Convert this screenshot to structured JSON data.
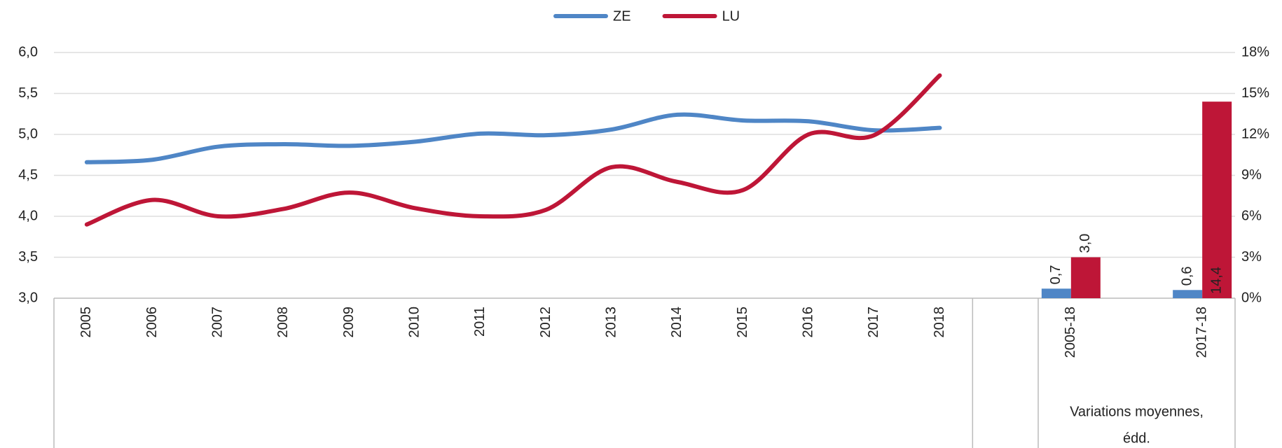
{
  "chart_data": {
    "type": "line-bar",
    "categories": [
      "2005",
      "2006",
      "2007",
      "2008",
      "2009",
      "2010",
      "2011",
      "2012",
      "2013",
      "2014",
      "2015",
      "2016",
      "2017",
      "2018",
      null,
      "2005-18",
      null,
      "2017-18"
    ],
    "series": [
      {
        "name": "ZE",
        "color": "#4f86c6",
        "values": [
          4.66,
          4.69,
          4.85,
          4.88,
          4.86,
          4.91,
          5.01,
          4.99,
          5.06,
          5.24,
          5.17,
          5.16,
          5.05,
          5.08,
          null,
          null,
          null,
          null
        ],
        "bar_values": [
          null,
          null,
          null,
          null,
          null,
          null,
          null,
          null,
          null,
          null,
          null,
          null,
          null,
          null,
          null,
          0.7,
          null,
          0.6
        ],
        "bar_value_labels": [
          null,
          null,
          null,
          null,
          null,
          null,
          null,
          null,
          null,
          null,
          null,
          null,
          null,
          null,
          null,
          "0,7",
          null,
          "0,6"
        ]
      },
      {
        "name": "LU",
        "color": "#be1637",
        "values": [
          3.9,
          4.2,
          4.0,
          4.09,
          4.29,
          4.1,
          4.0,
          4.08,
          4.6,
          4.42,
          4.32,
          5.0,
          4.99,
          5.72,
          null,
          null,
          null,
          null
        ],
        "bar_values": [
          null,
          null,
          null,
          null,
          null,
          null,
          null,
          null,
          null,
          null,
          null,
          null,
          null,
          null,
          null,
          3.0,
          null,
          14.4
        ],
        "bar_value_labels": [
          null,
          null,
          null,
          null,
          null,
          null,
          null,
          null,
          null,
          null,
          null,
          null,
          null,
          null,
          null,
          "3,0",
          null,
          "14,4"
        ]
      }
    ],
    "ylim": [
      3,
      6
    ],
    "yticks": [
      {
        "value": 3,
        "label": "3,0"
      },
      {
        "value": 3.5,
        "label": "3,5"
      },
      {
        "value": 4,
        "label": "4,0"
      },
      {
        "value": 4.5,
        "label": "4,5"
      },
      {
        "value": 5,
        "label": "5,0"
      },
      {
        "value": 5.5,
        "label": "5,5"
      },
      {
        "value": 6,
        "label": "6,0"
      }
    ],
    "y2lim": [
      0,
      18
    ],
    "y2ticks": [
      {
        "value": 0,
        "label": "0%"
      },
      {
        "value": 3,
        "label": "3%"
      },
      {
        "value": 6,
        "label": "6%"
      },
      {
        "value": 9,
        "label": "9%"
      },
      {
        "value": 12,
        "label": "12%"
      },
      {
        "value": 15,
        "label": "15%"
      },
      {
        "value": 18,
        "label": "18%"
      }
    ],
    "group_label": [
      "Variations moyennes,",
      "édd."
    ],
    "grid": true,
    "legend": "top"
  }
}
